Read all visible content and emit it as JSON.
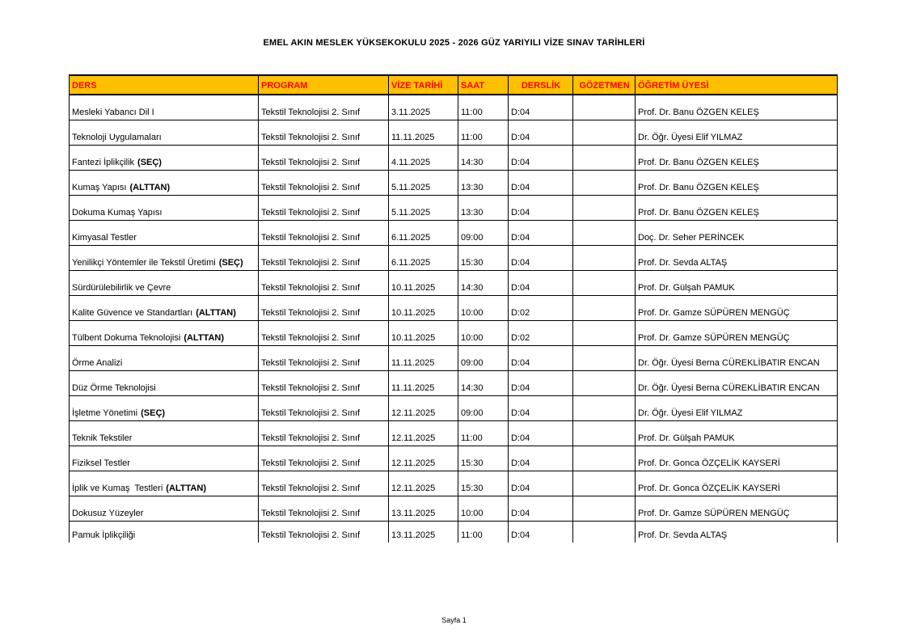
{
  "page": {
    "title": "EMEL AKIN MESLEK YÜKSEKOKULU 2025 - 2026 GÜZ YARIYILI VİZE SINAV TARİHLERİ",
    "footer": "Sayfa 1"
  },
  "colors": {
    "header_bg": "#FFC000",
    "header_text": "#FF0000",
    "border": "#000000"
  },
  "table": {
    "columns": [
      "DERS",
      "PROGRAM",
      "VİZE TARİHİ",
      "SAAT",
      "DERSLİK",
      "GÖZETMEN",
      "ÖĞRETİM ÜYESİ"
    ],
    "rows": [
      {
        "course": "Mesleki Yabancı Dil I",
        "course_tag": "",
        "program": "Tekstil Teknolojisi 2. Sınıf",
        "date": "3.11.2025",
        "time": "11:00",
        "room": "D:04",
        "proctor": "",
        "instructor": "Prof. Dr. Banu ÖZGEN KELEŞ"
      },
      {
        "course": "Teknoloji Uygulamaları",
        "course_tag": "",
        "program": "Tekstil Teknolojisi 2. Sınıf",
        "date": "11.11.2025",
        "time": "11:00",
        "room": "D:04",
        "proctor": "",
        "instructor": "Dr. Öğr. Üyesi Elif YILMAZ"
      },
      {
        "course": "Fantezi İplikçilik",
        "course_tag": "(SEÇ)",
        "program": "Tekstil Teknolojisi 2. Sınıf",
        "date": "4.11.2025",
        "time": "14:30",
        "room": "D:04",
        "proctor": "",
        "instructor": "Prof. Dr. Banu ÖZGEN KELEŞ"
      },
      {
        "course": "Kumaş Yapısı",
        "course_tag": "(ALTTAN)",
        "program": "Tekstil Teknolojisi 2. Sınıf",
        "date": "5.11.2025",
        "time": "13:30",
        "room": "D:04",
        "proctor": "",
        "instructor": "Prof. Dr. Banu ÖZGEN KELEŞ"
      },
      {
        "course": "Dokuma Kumaş Yapısı",
        "course_tag": "",
        "program": "Tekstil Teknolojisi 2. Sınıf",
        "date": "5.11.2025",
        "time": "13:30",
        "room": "D:04",
        "proctor": "",
        "instructor": "Prof. Dr. Banu ÖZGEN KELEŞ"
      },
      {
        "course": "Kimyasal Testler",
        "course_tag": "",
        "program": "Tekstil Teknolojisi 2. Sınıf",
        "date": "6.11.2025",
        "time": "09:00",
        "room": "D:04",
        "proctor": "",
        "instructor": "Doç. Dr. Seher PERİNCEK"
      },
      {
        "course": "Yenilikçi Yöntemler ile Tekstil Üretimi",
        "course_tag": "(SEÇ)",
        "program": "Tekstil Teknolojisi 2. Sınıf",
        "date": "6.11.2025",
        "time": "15:30",
        "room": "D:04",
        "proctor": "",
        "instructor": "Prof. Dr. Sevda ALTAŞ"
      },
      {
        "course": "Sürdürülebilirlik ve Çevre",
        "course_tag": "",
        "program": "Tekstil Teknolojisi 2. Sınıf",
        "date": "10.11.2025",
        "time": "14:30",
        "room": "D:04",
        "proctor": "",
        "instructor": "Prof. Dr. Gülşah PAMUK"
      },
      {
        "course": "Kalite Güvence ve Standartları",
        "course_tag": "(ALTTAN)",
        "program": "Tekstil Teknolojisi 2. Sınıf",
        "date": "10.11.2025",
        "time": "10:00",
        "room": "D:02",
        "proctor": "",
        "instructor": "Prof. Dr. Gamze SÜPÜREN MENGÜÇ"
      },
      {
        "course": "Tülbent Dokuma Teknolojisi",
        "course_tag": "(ALTTAN)",
        "program": "Tekstil Teknolojisi 2. Sınıf",
        "date": "10.11.2025",
        "time": "10:00",
        "room": "D:02",
        "proctor": "",
        "instructor": "Prof. Dr. Gamze SÜPÜREN MENGÜÇ"
      },
      {
        "course": "Örme Analizi",
        "course_tag": "",
        "program": "Tekstil Teknolojisi 2. Sınıf",
        "date": "11.11.2025",
        "time": "09:00",
        "room": "D:04",
        "proctor": "",
        "instructor": "Dr. Öğr. Üyesi Berna CÜREKLİBATIR ENCAN"
      },
      {
        "course": "Düz Örme Teknolojisi",
        "course_tag": "",
        "program": "Tekstil Teknolojisi 2. Sınıf",
        "date": "11.11.2025",
        "time": "14:30",
        "room": "D:04",
        "proctor": "",
        "instructor": "Dr. Öğr. Üyesi Berna CÜREKLİBATIR ENCAN"
      },
      {
        "course": "İşletme Yönetimi",
        "course_tag": "(SEÇ)",
        "program": "Tekstil Teknolojisi 2. Sınıf",
        "date": "12.11.2025",
        "time": "09:00",
        "room": "D:04",
        "proctor": "",
        "instructor": "Dr. Öğr. Üyesi Elif YILMAZ"
      },
      {
        "course": "Teknik Tekstiler",
        "course_tag": "",
        "program": "Tekstil Teknolojisi 2. Sınıf",
        "date": "12.11.2025",
        "time": "11:00",
        "room": "D:04",
        "proctor": "",
        "instructor": "Prof. Dr. Gülşah PAMUK"
      },
      {
        "course": "Fiziksel Testler",
        "course_tag": "",
        "program": "Tekstil Teknolojisi 2. Sınıf",
        "date": "12.11.2025",
        "time": "15:30",
        "room": "D:04",
        "proctor": "",
        "instructor": "Prof. Dr. Gonca ÖZÇELİK KAYSERİ"
      },
      {
        "course": "İplik ve Kumaş  Testleri",
        "course_tag": "(ALTTAN)",
        "program": "Tekstil Teknolojisi 2. Sınıf",
        "date": "12.11.2025",
        "time": "15:30",
        "room": "D:04",
        "proctor": "",
        "instructor": "Prof. Dr. Gonca ÖZÇELİK KAYSERİ"
      },
      {
        "course": "Dokusuz Yüzeyler",
        "course_tag": "",
        "program": "Tekstil Teknolojisi 2. Sınıf",
        "date": "13.11.2025",
        "time": "10:00",
        "room": "D:04",
        "proctor": "",
        "instructor": "Prof. Dr. Gamze SÜPÜREN MENGÜÇ"
      },
      {
        "course": "Pamuk İplikçiliği",
        "course_tag": "",
        "program": "Tekstil Teknolojisi 2. Sınıf",
        "date": "13.11.2025",
        "time": "11:00",
        "room": "D:04",
        "proctor": "",
        "instructor": "Prof. Dr. Sevda ALTAŞ"
      }
    ]
  }
}
